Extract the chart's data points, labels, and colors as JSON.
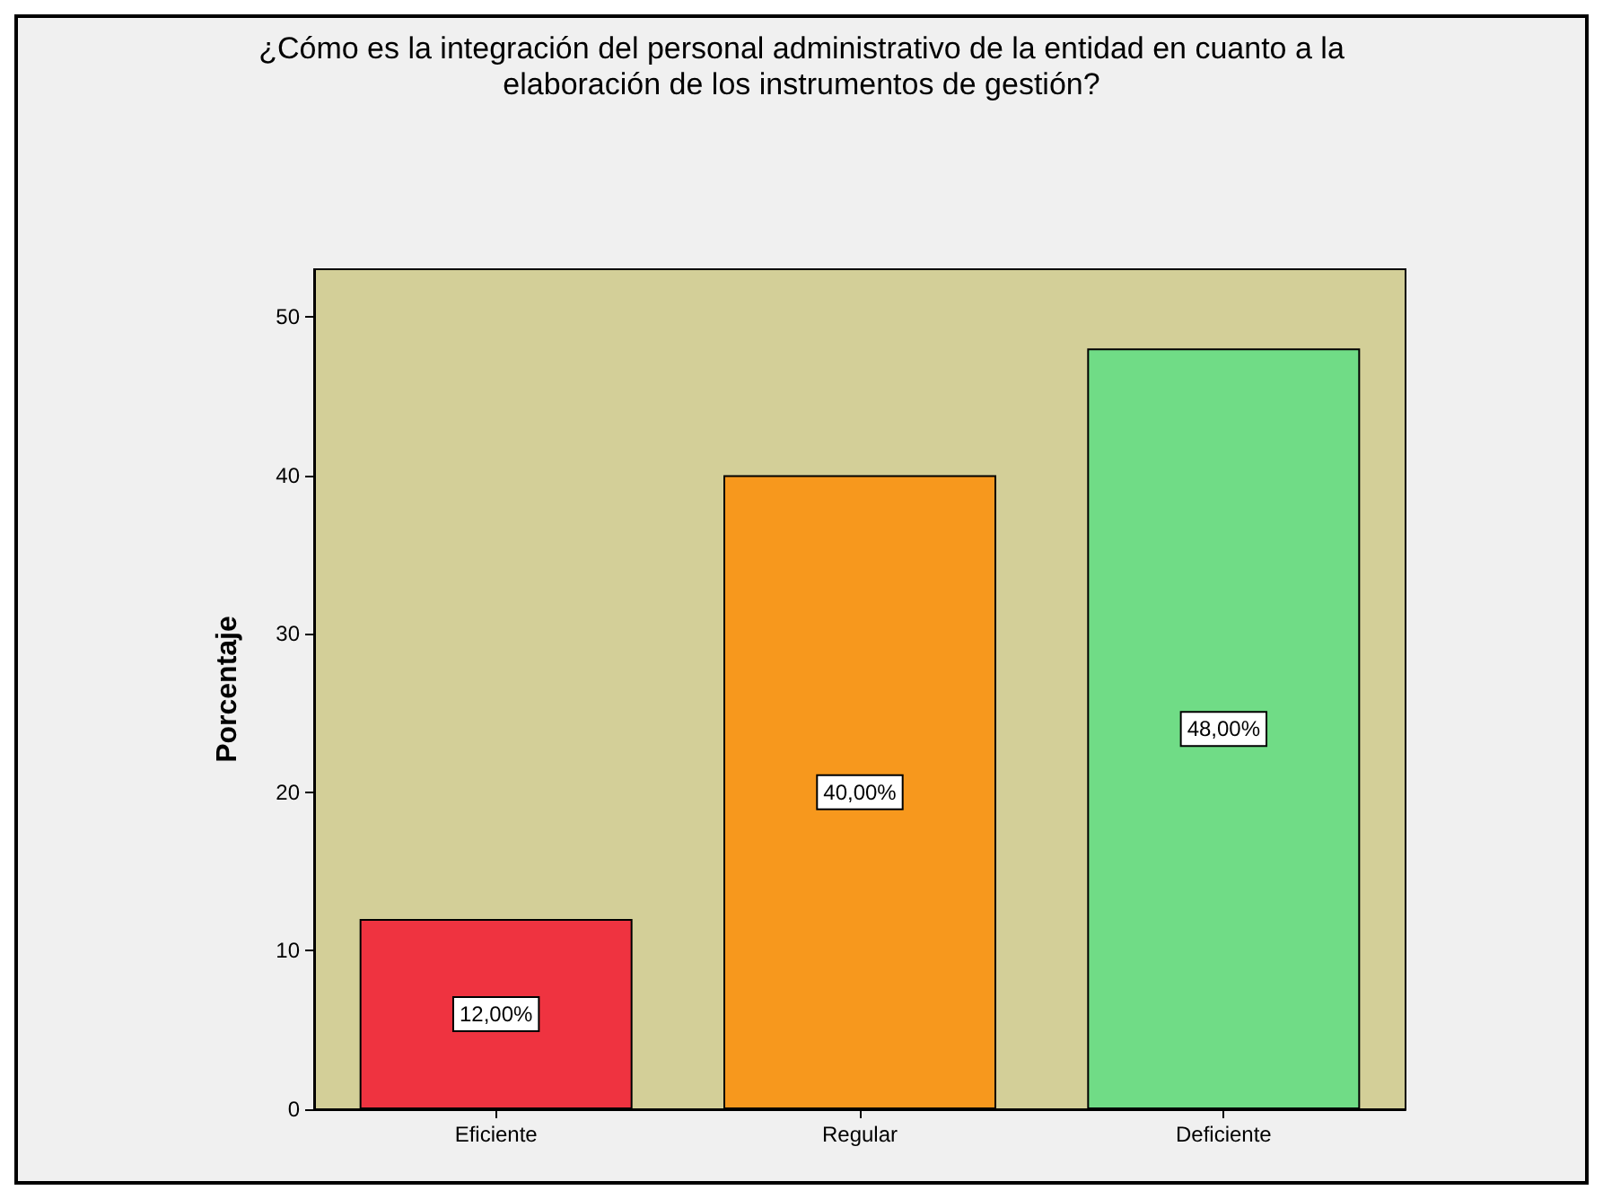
{
  "chart_data": {
    "type": "bar",
    "title": "¿Cómo es la integración del personal administrativo de la entidad en cuanto a la\nelaboración de los instrumentos de gestión?",
    "ylabel": "Porcentaje",
    "categories": [
      "Eficiente",
      "Regular",
      "Deficiente"
    ],
    "values": [
      12,
      40,
      48
    ],
    "colors": [
      "#ef3340",
      "#f7981d",
      "#70dc86"
    ],
    "value_labels": [
      "12,00%",
      "40,00%",
      "48,00%"
    ],
    "ylim": [
      0,
      53
    ],
    "yticks": [
      0,
      10,
      20,
      30,
      40,
      50
    ],
    "grid": false
  }
}
